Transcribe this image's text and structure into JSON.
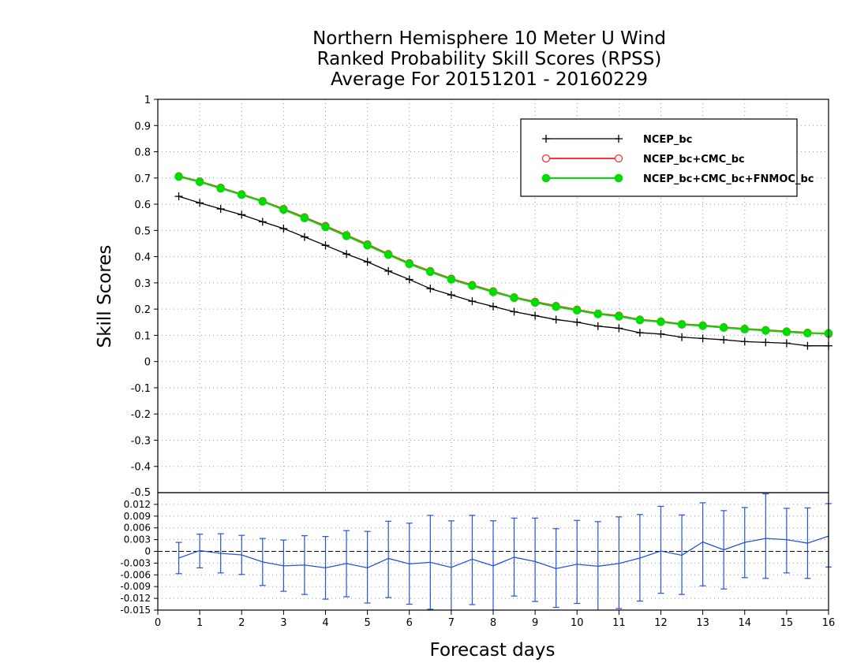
{
  "chart_data": [
    {
      "type": "line",
      "title_lines": [
        "Northern Hemisphere 10 Meter U Wind",
        "Ranked Probability Skill Scores (RPSS)",
        "Average For 20151201 - 20160229"
      ],
      "ylabel": "Skill Scores",
      "ylim": [
        -0.5,
        1
      ],
      "yticks": [
        "-0.4",
        "-0.3",
        "-0.2",
        "-0.1",
        "0",
        "0.1",
        "0.2",
        "0.3",
        "0.4",
        "0.5",
        "0.6",
        "0.7",
        "0.8",
        "0.9",
        "1"
      ],
      "ytick_values": [
        -0.4,
        -0.3,
        -0.2,
        -0.1,
        0,
        0.1,
        0.2,
        0.3,
        0.4,
        0.5,
        0.6,
        0.7,
        0.8,
        0.9,
        1
      ],
      "xlim": [
        0,
        16
      ],
      "grid": true,
      "legend_position": "top-right",
      "x": [
        0.5,
        1,
        1.5,
        2,
        2.5,
        3,
        3.5,
        4,
        4.5,
        5,
        5.5,
        6,
        6.5,
        7,
        7.5,
        8,
        8.5,
        9,
        9.5,
        10,
        10.5,
        11,
        11.5,
        12,
        12.5,
        13,
        13.5,
        14,
        14.5,
        15,
        15.5,
        16
      ],
      "series": [
        {
          "name": "NCEP_bc",
          "color": "#000000",
          "marker": "plus",
          "values": [
            0.63,
            0.605,
            0.582,
            0.56,
            0.533,
            0.507,
            0.475,
            0.443,
            0.41,
            0.38,
            0.345,
            0.313,
            0.278,
            0.254,
            0.23,
            0.21,
            0.19,
            0.175,
            0.16,
            0.15,
            0.135,
            0.127,
            0.11,
            0.105,
            0.093,
            0.088,
            0.083,
            0.076,
            0.073,
            0.07,
            0.06,
            0.06
          ]
        },
        {
          "name": "NCEP_bc+CMC_bc",
          "color": "#ff3333",
          "marker": "open-circle",
          "values": [
            0.707,
            0.687,
            0.663,
            0.638,
            0.612,
            0.582,
            0.55,
            0.517,
            0.482,
            0.447,
            0.41,
            0.375,
            0.345,
            0.316,
            0.292,
            0.268,
            0.245,
            0.228,
            0.212,
            0.198,
            0.183,
            0.175,
            0.16,
            0.153,
            0.143,
            0.138,
            0.131,
            0.125,
            0.12,
            0.115,
            0.11,
            0.105
          ]
        },
        {
          "name": "NCEP_bc+CMC_bc+FNMOC_bc",
          "color": "#00dd00",
          "marker": "filled-circle",
          "values": [
            0.705,
            0.685,
            0.66,
            0.636,
            0.61,
            0.579,
            0.547,
            0.513,
            0.479,
            0.443,
            0.407,
            0.372,
            0.342,
            0.313,
            0.289,
            0.265,
            0.243,
            0.225,
            0.209,
            0.195,
            0.181,
            0.172,
            0.158,
            0.151,
            0.141,
            0.136,
            0.129,
            0.123,
            0.118,
            0.113,
            0.108,
            0.108
          ]
        }
      ]
    },
    {
      "type": "line",
      "xlabel": "Forecast days",
      "xticks": [
        "0",
        "1",
        "2",
        "3",
        "4",
        "5",
        "6",
        "7",
        "8",
        "9",
        "10",
        "11",
        "12",
        "13",
        "14",
        "15",
        "16"
      ],
      "xtick_values": [
        0,
        1,
        2,
        3,
        4,
        5,
        6,
        7,
        8,
        9,
        10,
        11,
        12,
        13,
        14,
        15,
        16
      ],
      "xlim": [
        0,
        16
      ],
      "ylim": [
        -0.015,
        0.015
      ],
      "yticks": [
        "-0.015",
        "-0.012",
        "-0.009",
        "-0.006",
        "-0.003",
        "0",
        "0.003",
        "0.006",
        "0.009",
        "0.012"
      ],
      "ytick_values": [
        -0.015,
        -0.012,
        -0.009,
        -0.006,
        -0.003,
        0,
        0.003,
        0.006,
        0.009,
        0.012
      ],
      "grid": true,
      "x": [
        0.5,
        1,
        1.5,
        2,
        2.5,
        3,
        3.5,
        4,
        4.5,
        5,
        5.5,
        6,
        6.5,
        7,
        7.5,
        8,
        8.5,
        9,
        9.5,
        10,
        10.5,
        11,
        11.5,
        12,
        12.5,
        13,
        13.5,
        14,
        14.5,
        15,
        15.5,
        16
      ],
      "series": [
        {
          "color": "#2255dd",
          "values": [
            -0.0017,
            0.0002,
            -0.0005,
            -0.0009,
            -0.0027,
            -0.0037,
            -0.0035,
            -0.0042,
            -0.0031,
            -0.0042,
            -0.0018,
            -0.0032,
            -0.0028,
            -0.0041,
            -0.002,
            -0.0037,
            -0.0015,
            -0.0026,
            -0.0044,
            -0.0033,
            -0.0038,
            -0.0031,
            -0.0017,
            0.0001,
            -0.001,
            0.0024,
            0.0004,
            0.0023,
            0.0033,
            0.003,
            0.0021,
            0.0039
          ],
          "error_low": [
            -0.0057,
            -0.0042,
            -0.0055,
            -0.0059,
            -0.0087,
            -0.0102,
            -0.011,
            -0.0122,
            -0.0116,
            -0.0132,
            -0.0118,
            -0.0135,
            -0.0148,
            -0.0151,
            -0.0136,
            -0.0152,
            -0.0114,
            -0.0128,
            -0.0143,
            -0.0133,
            -0.0152,
            -0.0146,
            -0.0127,
            -0.0107,
            -0.011,
            -0.0088,
            -0.0096,
            -0.0067,
            -0.0069,
            -0.0055,
            -0.0069,
            -0.004
          ],
          "error_high": [
            0.0023,
            0.0044,
            0.0045,
            0.0041,
            0.0033,
            0.0029,
            0.004,
            0.0038,
            0.0053,
            0.0051,
            0.0077,
            0.0072,
            0.0092,
            0.0078,
            0.0092,
            0.0078,
            0.0085,
            0.0085,
            0.0058,
            0.0079,
            0.0076,
            0.0088,
            0.0094,
            0.0115,
            0.0093,
            0.0124,
            0.0104,
            0.0112,
            0.0147,
            0.011,
            0.0111,
            0.0122
          ]
        }
      ]
    }
  ]
}
